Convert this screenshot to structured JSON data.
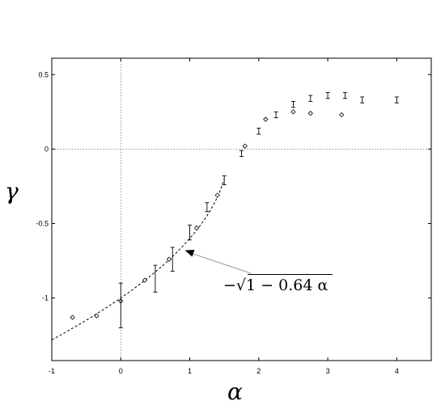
{
  "chart_data": {
    "type": "scatter",
    "xlabel": "α",
    "ylabel": "γ",
    "xlim": [
      -1,
      4.5
    ],
    "ylim": [
      -1.42,
      0.61
    ],
    "x_ticks": [
      -1,
      0,
      1,
      2,
      3,
      4
    ],
    "y_ticks": [
      -1,
      -0.5,
      0,
      0.5
    ],
    "x_tick_labels": [
      "-1",
      "0",
      "1",
      "2",
      "3",
      "4"
    ],
    "y_tick_labels": [
      "-1",
      "-0.5",
      "0",
      "0.5"
    ],
    "grid": false,
    "reference_lines": {
      "x": 0,
      "y": 0
    },
    "series": [
      {
        "marker": "diamond",
        "points": [
          {
            "x": -0.7,
            "y": -1.13
          },
          {
            "x": -0.35,
            "y": -1.12
          },
          {
            "x": 0.0,
            "y": -1.02
          },
          {
            "x": 0.35,
            "y": -0.88
          },
          {
            "x": 0.7,
            "y": -0.74
          },
          {
            "x": 1.1,
            "y": -0.53
          },
          {
            "x": 1.4,
            "y": -0.31
          },
          {
            "x": 1.8,
            "y": 0.02
          },
          {
            "x": 2.1,
            "y": 0.2
          },
          {
            "x": 2.5,
            "y": 0.25
          },
          {
            "x": 2.75,
            "y": 0.24
          },
          {
            "x": 3.2,
            "y": 0.23
          }
        ]
      },
      {
        "marker": "errorbar",
        "points": [
          {
            "x": 0.0,
            "y": -1.05,
            "err": 0.15
          },
          {
            "x": 0.5,
            "y": -0.87,
            "err": 0.09
          },
          {
            "x": 0.75,
            "y": -0.74,
            "err": 0.08
          },
          {
            "x": 1.0,
            "y": -0.56,
            "err": 0.05
          },
          {
            "x": 1.25,
            "y": -0.39,
            "err": 0.03
          },
          {
            "x": 1.5,
            "y": -0.21,
            "err": 0.03
          },
          {
            "x": 1.75,
            "y": -0.03,
            "err": 0.02
          },
          {
            "x": 2.0,
            "y": 0.12,
            "err": 0.02
          },
          {
            "x": 2.25,
            "y": 0.23,
            "err": 0.02
          },
          {
            "x": 2.5,
            "y": 0.3,
            "err": 0.02
          },
          {
            "x": 2.75,
            "y": 0.34,
            "err": 0.02
          },
          {
            "x": 3.0,
            "y": 0.36,
            "err": 0.02
          },
          {
            "x": 3.25,
            "y": 0.36,
            "err": 0.02
          },
          {
            "x": 3.5,
            "y": 0.33,
            "err": 0.02
          },
          {
            "x": 4.0,
            "y": 0.33,
            "err": 0.02
          }
        ]
      }
    ],
    "fit_curve": {
      "style": "dashed",
      "coefficient": 0.64,
      "x_range": [
        -1,
        1.5
      ]
    },
    "annotation": {
      "text_prefix": "−√",
      "text_body": "1 − 0.64 α",
      "arrow_target": {
        "x": 0.93,
        "y": -0.68
      }
    }
  }
}
